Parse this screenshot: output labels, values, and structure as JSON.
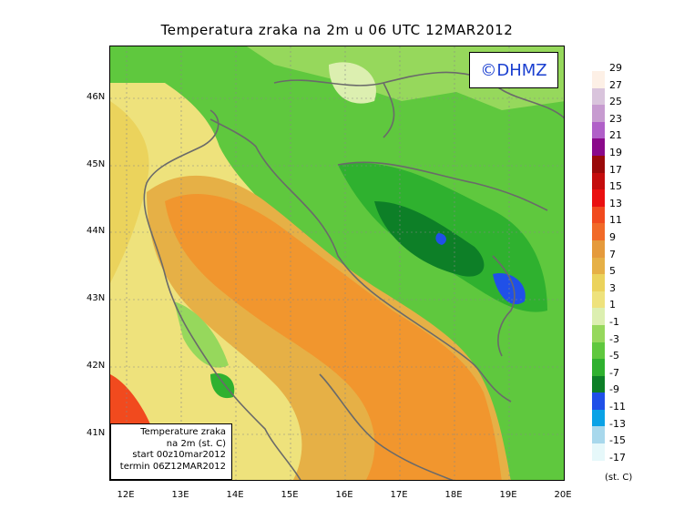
{
  "title": "Temperatura zraka na 2m u 06 UTC 12MAR2012",
  "copyright": "©DHMZ",
  "info_box": [
    "Temperature zraka",
    "na 2m (st. C)",
    "start 00z10mar2012",
    "termin 06Z12MAR2012"
  ],
  "latitude_labels": [
    "46N",
    "45N",
    "44N",
    "43N",
    "42N",
    "41N"
  ],
  "longitude_labels": [
    "12E",
    "13E",
    "14E",
    "15E",
    "16E",
    "17E",
    "18E",
    "19E",
    "20E"
  ],
  "legend": {
    "unit": "(st. C)",
    "labels": [
      "29",
      "27",
      "25",
      "23",
      "21",
      "19",
      "17",
      "15",
      "13",
      "11",
      "9",
      "7",
      "5",
      "3",
      "1",
      "-1",
      "-3",
      "-5",
      "-7",
      "-9",
      "-11",
      "-13",
      "-15",
      "-17"
    ],
    "colors": [
      "#fdf0e6",
      "#d9c4dc",
      "#c79bd0",
      "#b060c8",
      "#8a0a8a",
      "#9a0a0a",
      "#c40d0d",
      "#ea1010",
      "#f14a1e",
      "#f16a28",
      "#e59a3c",
      "#e6b046",
      "#ebd35c",
      "#eee27c",
      "#dcefb0",
      "#96d85c",
      "#5fc83e",
      "#2fb12f",
      "#0d7f27",
      "#2050e8",
      "#0aa2e6",
      "#a8d8ec",
      "#e6f8fa"
    ]
  }
}
